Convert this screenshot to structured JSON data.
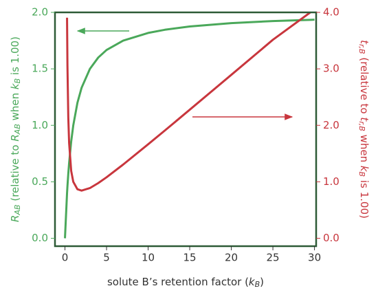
{
  "chart_data": {
    "type": "line",
    "x_label": [
      "solute B’s retention factor (",
      "k",
      "B",
      ")"
    ],
    "y_label": [
      "R",
      "AB",
      " (relative to ",
      "R",
      "AB",
      " when ",
      "k",
      "B",
      " is 1.00)"
    ],
    "y2_label": [
      "t",
      "r,B",
      " (relative to ",
      "t",
      "r,B",
      " when ",
      "k",
      "B",
      " is 1.00)"
    ],
    "x": [
      0,
      0.25,
      0.3,
      0.4,
      0.5,
      0.75,
      1,
      1.5,
      2,
      3,
      4,
      5,
      7,
      10,
      12,
      15,
      20,
      25,
      29.5,
      30
    ],
    "series": [
      {
        "color": "#4aa85a",
        "values": [
          0,
          0.4,
          0.462,
          0.571,
          0.667,
          0.857,
          1.0,
          1.2,
          1.333,
          1.5,
          1.6,
          1.667,
          1.75,
          1.818,
          1.846,
          1.875,
          1.905,
          1.923,
          1.934,
          1.935
        ]
      },
      {
        "color": "#c8363d",
        "axis": "y2",
        "values": [
          null,
          3.906,
          3.051,
          2.144,
          1.688,
          1.191,
          1.0,
          0.868,
          0.844,
          0.889,
          0.977,
          1.08,
          1.306,
          1.664,
          1.907,
          2.276,
          2.894,
          3.515,
          4.0,
          null
        ]
      }
    ],
    "xlim": [
      -1.2,
      30.2
    ],
    "xticks": [
      0,
      5,
      10,
      15,
      20,
      25,
      30
    ],
    "ylim": [
      -0.07,
      2.0
    ],
    "yticks": [
      {
        "value": 0,
        "label": "0.0"
      },
      {
        "value": 0.5,
        "label": "0.5"
      },
      {
        "value": 1,
        "label": "1.0"
      },
      1.5,
      {
        "value": 2,
        "label": "2.0"
      }
    ],
    "y2lim": [
      -0.14,
      4.0
    ],
    "y2ticks": [
      {
        "value": 0,
        "label": "0.0"
      },
      {
        "value": 1,
        "label": "1.0"
      },
      {
        "value": 2,
        "label": "2.0"
      },
      {
        "value": 3,
        "label": "3.0"
      },
      {
        "value": 4,
        "label": "4.0"
      }
    ]
  }
}
